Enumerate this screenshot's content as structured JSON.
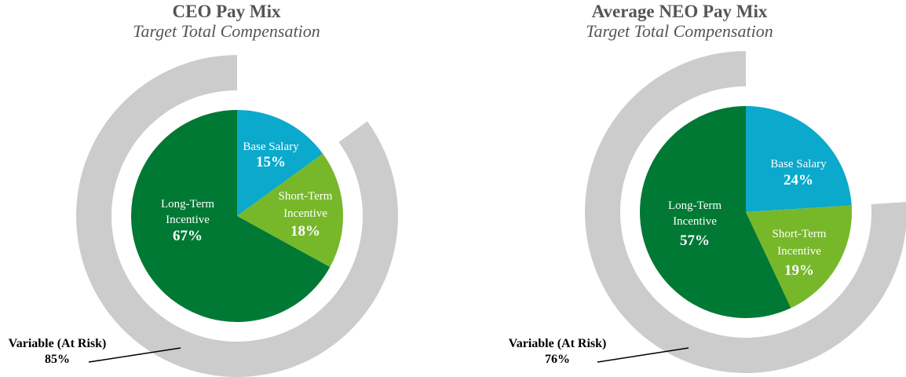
{
  "colors": {
    "base_salary": "#0ba9cc",
    "short_term_incentive": "#77b82a",
    "long_term_incentive": "#007934",
    "variable_ring": "#cccccc",
    "title": "#555555"
  },
  "chart_data": [
    {
      "type": "pie",
      "title": "CEO Pay Mix",
      "subtitle": "Target Total Compensation",
      "slices": [
        {
          "label": [
            "Base Salary"
          ],
          "value": 15,
          "display": "15%",
          "color_key": "base_salary"
        },
        {
          "label": [
            "Short-Term",
            "Incentive"
          ],
          "value": 18,
          "display": "18%",
          "color_key": "short_term_incentive"
        },
        {
          "label": [
            "Long-Term",
            "Incentive"
          ],
          "value": 67,
          "display": "67%",
          "color_key": "long_term_incentive"
        }
      ],
      "variable_at_risk": {
        "label": "Variable (At Risk)",
        "value": 85,
        "display": "85%"
      }
    },
    {
      "type": "pie",
      "title": "Average NEO Pay Mix",
      "subtitle": "Target Total Compensation",
      "slices": [
        {
          "label": [
            "Base Salary"
          ],
          "value": 24,
          "display": "24%",
          "color_key": "base_salary"
        },
        {
          "label": [
            "Short-Term",
            "Incentive"
          ],
          "value": 19,
          "display": "19%",
          "color_key": "short_term_incentive"
        },
        {
          "label": [
            "Long-Term",
            "Incentive"
          ],
          "value": 57,
          "display": "57%",
          "color_key": "long_term_incentive"
        }
      ],
      "variable_at_risk": {
        "label": "Variable (At Risk)",
        "value": 76,
        "display": "76%"
      }
    }
  ]
}
